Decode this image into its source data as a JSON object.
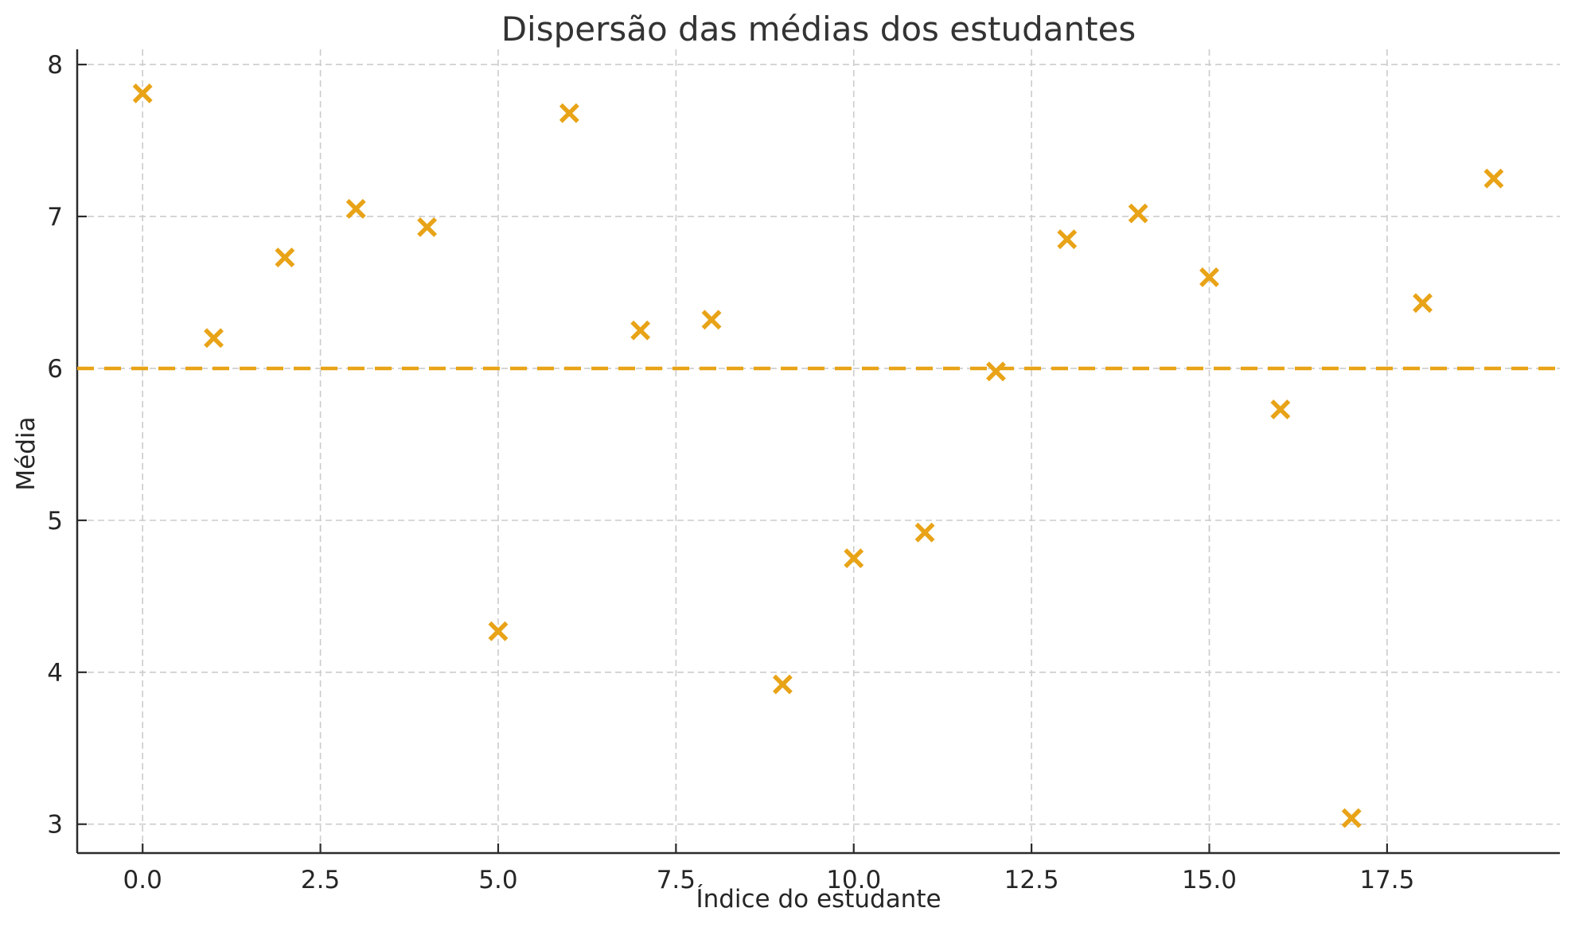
{
  "figure": {
    "title": "Dispersão das médias dos estudantes",
    "xlabel": "Índice do estudante",
    "ylabel": "Média"
  },
  "chart_data": {
    "type": "scatter",
    "title": "Dispersão das médias dos estudantes",
    "xlabel": "Índice do estudante",
    "ylabel": "Média",
    "x": [
      0,
      1,
      2,
      3,
      4,
      5,
      6,
      7,
      8,
      9,
      10,
      11,
      12,
      13,
      14,
      15,
      16,
      17,
      18,
      19
    ],
    "y": [
      7.81,
      6.2,
      6.73,
      7.05,
      6.93,
      4.27,
      7.68,
      6.25,
      6.32,
      3.92,
      4.75,
      4.92,
      5.98,
      6.85,
      7.02,
      6.6,
      5.73,
      3.04,
      6.43,
      7.25
    ],
    "marker": "x",
    "marker_color": "#E8A317",
    "mean_line": {
      "y": 6.0,
      "style": "dashed",
      "color": "#E8A317"
    },
    "xticks": [
      0.0,
      2.5,
      5.0,
      7.5,
      10.0,
      12.5,
      15.0,
      17.5
    ],
    "xtick_labels": [
      "0.0",
      "2.5",
      "5.0",
      "7.5",
      "10.0",
      "12.5",
      "15.0",
      "17.5"
    ],
    "yticks": [
      3,
      4,
      5,
      6,
      7,
      8
    ],
    "ytick_labels": [
      "3",
      "4",
      "5",
      "6",
      "7",
      "8"
    ],
    "xlim": [
      -0.92,
      19.93
    ],
    "ylim": [
      2.81,
      8.1
    ],
    "grid": true,
    "grid_style": "dashed",
    "grid_color": "#cccccc",
    "spine_color": "#2b2b2b",
    "text_color": "#262626",
    "legend": "none"
  }
}
